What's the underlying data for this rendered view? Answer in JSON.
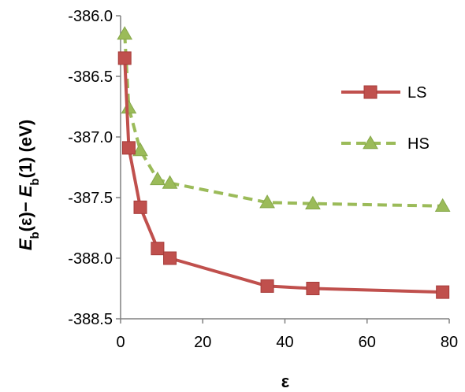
{
  "chart_data": {
    "type": "line",
    "xlabel": "ε",
    "ylabel": "E_b(ε) − E_b(1) (eV)",
    "xlim": [
      0,
      80
    ],
    "ylim": [
      -388.5,
      -386.0
    ],
    "x_ticks": [
      "0",
      "20",
      "40",
      "60",
      "80"
    ],
    "y_ticks": [
      "-386.0",
      "-386.5",
      "-387.0",
      "-387.5",
      "-388.0",
      "-388.5"
    ],
    "grid": false,
    "legend_position": "right-center",
    "series": [
      {
        "name": "LS",
        "color": "#c0504d",
        "marker": "square",
        "line_style": "solid",
        "x": [
          1.0,
          2.0,
          4.8,
          9.0,
          12.0,
          35.7,
          46.8,
          78.4
        ],
        "y": [
          -386.35,
          -387.09,
          -387.58,
          -387.92,
          -388.0,
          -388.23,
          -388.25,
          -388.28
        ]
      },
      {
        "name": "HS",
        "color": "#9bbb59",
        "marker": "triangle",
        "line_style": "dashed",
        "x": [
          1.0,
          2.0,
          4.8,
          9.0,
          12.0,
          35.7,
          46.8,
          78.4
        ],
        "y": [
          -386.15,
          -386.76,
          -387.11,
          -387.35,
          -387.38,
          -387.54,
          -387.55,
          -387.57
        ]
      }
    ]
  }
}
